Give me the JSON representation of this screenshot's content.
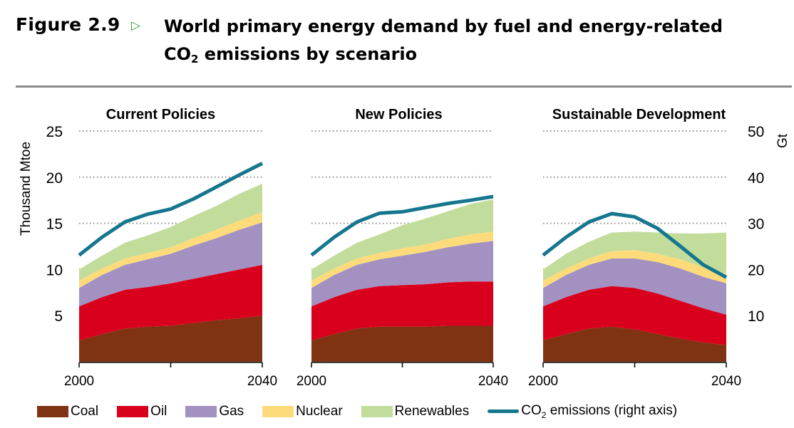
{
  "figure": {
    "label": "Figure 2.9",
    "arrow_icon": "triangle-right-outline-icon",
    "title_line1": "World primary energy demand by fuel and energy-related",
    "title_line2_pre": "CO",
    "title_line2_sub": "2",
    "title_line2_post": " emissions by scenario"
  },
  "legend": [
    {
      "key": "coal",
      "label": "Coal",
      "type": "area"
    },
    {
      "key": "oil",
      "label": "Oil",
      "type": "area"
    },
    {
      "key": "gas",
      "label": "Gas",
      "type": "area"
    },
    {
      "key": "nuclear",
      "label": "Nuclear",
      "type": "area"
    },
    {
      "key": "renewables",
      "label": "Renewables",
      "type": "area"
    },
    {
      "key": "co2",
      "label_pre": "CO",
      "label_sub": "2",
      "label_post": " emissions (right axis)",
      "type": "line"
    }
  ],
  "colors": {
    "coal": "#7f3313",
    "oil": "#d9001e",
    "gas": "#a291c1",
    "nuclear": "#fddb7a",
    "renewables": "#c1dc9b",
    "co2": "#15768e",
    "grid": "#8c8c8c"
  },
  "chart_data": {
    "type": "area",
    "subtype": "stacked area with line on secondary axis",
    "ylabel": "Thousand Mtoe",
    "y2label": "Gt",
    "ylim": [
      0,
      25
    ],
    "y2lim": [
      0,
      50
    ],
    "yticks": [
      5,
      10,
      15,
      20,
      25
    ],
    "y2ticks": [
      10,
      20,
      30,
      40,
      50
    ],
    "xlim": [
      2000,
      2040
    ],
    "xticklabels": [
      "2000",
      "2040"
    ],
    "grid": "horizontal dotted",
    "legend_position": "bottom",
    "panels": [
      {
        "title": "Current Policies",
        "x": [
          2000,
          2005,
          2010,
          2015,
          2020,
          2025,
          2030,
          2035,
          2040
        ],
        "series": [
          {
            "name": "Coal",
            "key": "coal",
            "values": [
              2.3,
              3.0,
              3.6,
              3.8,
              3.9,
              4.2,
              4.5,
              4.7,
              5.0
            ]
          },
          {
            "name": "Oil",
            "key": "oil",
            "values": [
              3.7,
              4.0,
              4.2,
              4.3,
              4.6,
              4.8,
              5.0,
              5.3,
              5.5
            ]
          },
          {
            "name": "Gas",
            "key": "gas",
            "values": [
              2.0,
              2.4,
              2.7,
              3.0,
              3.2,
              3.6,
              3.9,
              4.3,
              4.6
            ]
          },
          {
            "name": "Nuclear",
            "key": "nuclear",
            "values": [
              0.8,
              0.7,
              0.7,
              0.7,
              0.7,
              0.8,
              0.9,
              1.0,
              1.1
            ]
          },
          {
            "name": "Renewables",
            "key": "renewables",
            "values": [
              1.2,
              1.4,
              1.7,
              1.9,
              2.2,
              2.4,
              2.6,
              2.9,
              3.1
            ]
          }
        ],
        "co2": {
          "name": "CO2 emissions (right axis)",
          "axis": "right",
          "values": [
            23.1,
            27.0,
            30.3,
            32.0,
            33.1,
            35.3,
            37.9,
            40.5,
            43.0
          ]
        }
      },
      {
        "title": "New Policies",
        "x": [
          2000,
          2005,
          2010,
          2015,
          2020,
          2025,
          2030,
          2035,
          2040
        ],
        "series": [
          {
            "name": "Coal",
            "key": "coal",
            "values": [
              2.3,
              3.0,
              3.6,
              3.8,
              3.8,
              3.8,
              3.9,
              3.9,
              3.9
            ]
          },
          {
            "name": "Oil",
            "key": "oil",
            "values": [
              3.7,
              4.0,
              4.2,
              4.4,
              4.5,
              4.6,
              4.7,
              4.8,
              4.8
            ]
          },
          {
            "name": "Gas",
            "key": "gas",
            "values": [
              2.0,
              2.4,
              2.7,
              2.9,
              3.2,
              3.5,
              3.8,
              4.1,
              4.4
            ]
          },
          {
            "name": "Nuclear",
            "key": "nuclear",
            "values": [
              0.8,
              0.7,
              0.7,
              0.7,
              0.8,
              0.8,
              0.9,
              1.0,
              1.0
            ]
          },
          {
            "name": "Renewables",
            "key": "renewables",
            "values": [
              1.2,
              1.4,
              1.7,
              2.0,
              2.5,
              2.8,
              3.0,
              3.3,
              3.5
            ]
          }
        ],
        "co2": {
          "name": "CO2 emissions (right axis)",
          "axis": "right",
          "values": [
            23.1,
            27.0,
            30.3,
            32.2,
            32.5,
            33.4,
            34.3,
            35.0,
            35.8
          ]
        }
      },
      {
        "title": "Sustainable Development",
        "x": [
          2000,
          2005,
          2010,
          2015,
          2020,
          2025,
          2030,
          2035,
          2040
        ],
        "series": [
          {
            "name": "Coal",
            "key": "coal",
            "values": [
              2.3,
              3.0,
              3.6,
              3.8,
              3.5,
              3.0,
              2.5,
              2.1,
              1.8
            ]
          },
          {
            "name": "Oil",
            "key": "oil",
            "values": [
              3.7,
              4.0,
              4.2,
              4.4,
              4.5,
              4.4,
              4.1,
              3.7,
              3.3
            ]
          },
          {
            "name": "Gas",
            "key": "gas",
            "values": [
              2.0,
              2.4,
              2.7,
              3.0,
              3.2,
              3.4,
              3.5,
              3.4,
              3.4
            ]
          },
          {
            "name": "Nuclear",
            "key": "nuclear",
            "values": [
              0.8,
              0.7,
              0.7,
              0.8,
              0.9,
              0.9,
              1.0,
              1.0,
              1.0
            ]
          },
          {
            "name": "Renewables",
            "key": "renewables",
            "values": [
              1.2,
              1.6,
              1.8,
              2.0,
              2.0,
              2.3,
              2.8,
              3.7,
              4.5
            ]
          }
        ],
        "co2": {
          "name": "CO2 emissions (right axis)",
          "axis": "right",
          "values": [
            23.1,
            27.0,
            30.3,
            32.1,
            31.4,
            28.9,
            25.0,
            21.0,
            18.3
          ]
        }
      }
    ]
  }
}
